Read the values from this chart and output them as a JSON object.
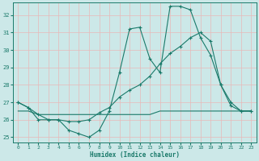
{
  "bg_color": "#cce8e8",
  "grid_color": "#e8b8b8",
  "line_color": "#1a7a6a",
  "xlabel": "Humidex (Indice chaleur)",
  "xlim": [
    -0.5,
    23.5
  ],
  "ylim": [
    24.7,
    32.7
  ],
  "yticks": [
    25,
    26,
    27,
    28,
    29,
    30,
    31,
    32
  ],
  "xticks": [
    0,
    1,
    2,
    3,
    4,
    5,
    6,
    7,
    8,
    9,
    10,
    11,
    12,
    13,
    14,
    15,
    16,
    17,
    18,
    19,
    20,
    21,
    22,
    23
  ],
  "line1_y": [
    27.0,
    26.7,
    26.3,
    26.0,
    26.0,
    25.4,
    25.2,
    25.0,
    25.4,
    26.5,
    28.7,
    31.2,
    31.3,
    29.5,
    28.7,
    32.5,
    32.5,
    32.3,
    30.7,
    29.7,
    28.0,
    26.8,
    26.5,
    26.5
  ],
  "line2_y": [
    27.0,
    26.7,
    26.0,
    26.0,
    26.0,
    25.9,
    25.9,
    26.0,
    26.4,
    26.7,
    27.3,
    27.7,
    28.0,
    28.5,
    29.2,
    29.8,
    30.2,
    30.7,
    31.0,
    30.5,
    28.0,
    27.0,
    26.5,
    26.5
  ],
  "line3_y": [
    26.5,
    26.5,
    26.3,
    26.3,
    26.3,
    26.3,
    26.3,
    26.3,
    26.3,
    26.3,
    26.3,
    26.3,
    26.3,
    26.3,
    26.5,
    26.5,
    26.5,
    26.5,
    26.5,
    26.5,
    26.5,
    26.5,
    26.5,
    26.5
  ]
}
